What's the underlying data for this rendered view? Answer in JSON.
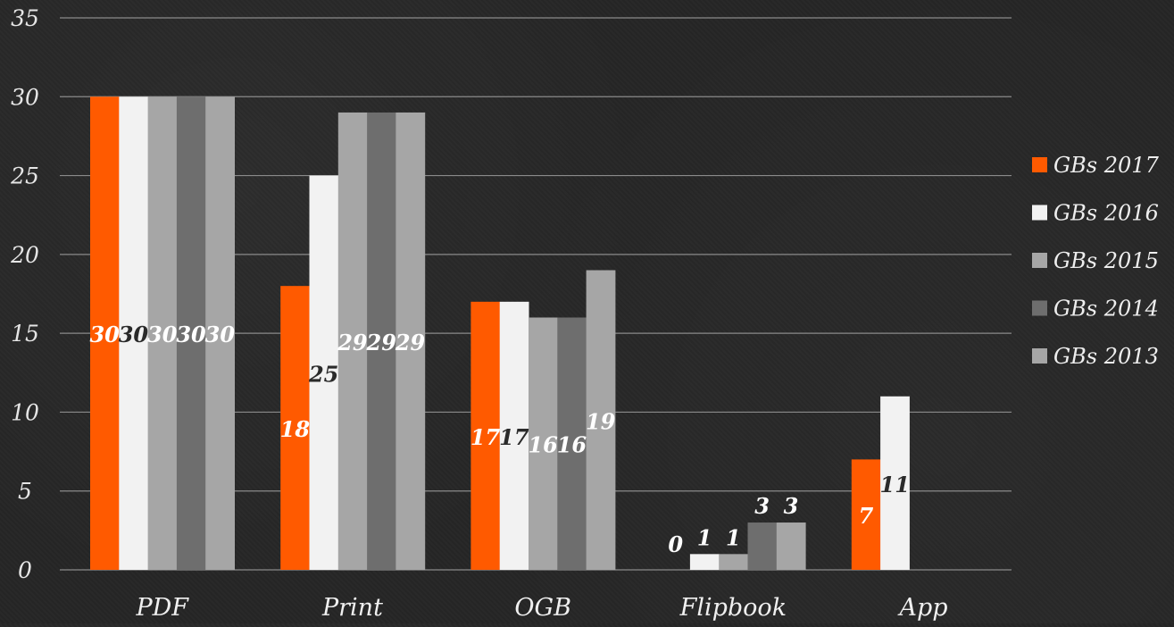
{
  "chart_data": {
    "type": "bar",
    "categories": [
      "PDF",
      "Print",
      "OGB",
      "Flipbook",
      "App"
    ],
    "series": [
      {
        "name": "GBs 2017",
        "color": "#FF5A00",
        "values": [
          30,
          18,
          17,
          0,
          7
        ]
      },
      {
        "name": "GBs 2016",
        "color": "#F2F2F2",
        "values": [
          30,
          25,
          17,
          1,
          11
        ]
      },
      {
        "name": "GBs 2015",
        "color": "#A6A6A6",
        "values": [
          30,
          29,
          16,
          1,
          null
        ]
      },
      {
        "name": "GBs 2014",
        "color": "#6E6E6E",
        "values": [
          30,
          29,
          16,
          3,
          null
        ]
      },
      {
        "name": "GBs 2013",
        "color": "#A6A6A6",
        "values": [
          30,
          29,
          19,
          3,
          null
        ]
      }
    ],
    "ylim": [
      0,
      35
    ],
    "yticks": [
      0,
      5,
      10,
      15,
      20,
      25,
      30,
      35
    ],
    "title": "",
    "xlabel": "",
    "ylabel": "",
    "grid": true,
    "legend": "right"
  }
}
